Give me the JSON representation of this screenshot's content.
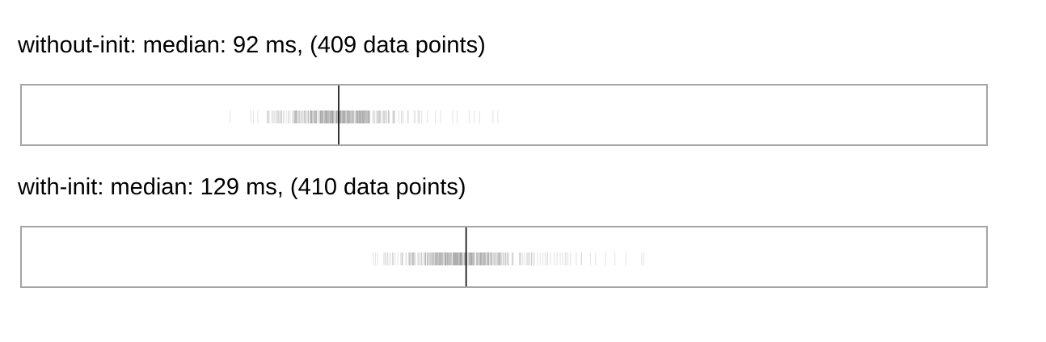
{
  "colors": {
    "tick": "#9a9a9a",
    "median": "#000000",
    "border": "#a5a5a5"
  },
  "chart_data": [
    {
      "type": "strip",
      "name": "without-init",
      "median_ms": 92,
      "count": 409,
      "title_parts": {
        "median_label": "median:",
        "unit": "ms",
        "points_label": "data points"
      },
      "xlim": [
        0,
        280
      ],
      "median": 92,
      "clusters": [
        {
          "center": 92,
          "spread": 7,
          "n": 260
        },
        {
          "center": 88,
          "spread": 10,
          "n": 100
        }
      ],
      "values": [
        66.5,
        68.5,
        71.4,
        72.6,
        73.2,
        74.6,
        75.3,
        77.4,
        77.9,
        78.8,
        103.5,
        104.1,
        104.7,
        105.6,
        106.4,
        108.2,
        109.5,
        110.3,
        112.0,
        113.9,
        114.2,
        115.5,
        116.1,
        117.8,
        120.1,
        121.6,
        125.1,
        126.4,
        129.9,
        131.3,
        132.9,
        136.8,
        138.2
      ]
    },
    {
      "type": "strip",
      "name": "with-init",
      "median_ms": 129,
      "count": 410,
      "title_parts": {
        "median_label": "median:",
        "unit": "ms",
        "points_label": "data points"
      },
      "xlim": [
        0,
        280
      ],
      "median": 129,
      "clusters": [
        {
          "center": 127,
          "spread": 7,
          "n": 250
        },
        {
          "center": 132,
          "spread": 11,
          "n": 110
        }
      ],
      "values": [
        102.0,
        103.3,
        105.6,
        106.6,
        107.1,
        108.4,
        109.2,
        110.0,
        110.6,
        111.5,
        112.3,
        113.0,
        113.6,
        146.0,
        147.2,
        148.1,
        149.7,
        150.5,
        151.3,
        152.7,
        153.5,
        154.6,
        155.4,
        157.0,
        158.0,
        159.3,
        161.0,
        162.5,
        165.1,
        166.6,
        169.5,
        172.2,
        175.4,
        180.0,
        180.6
      ]
    }
  ]
}
